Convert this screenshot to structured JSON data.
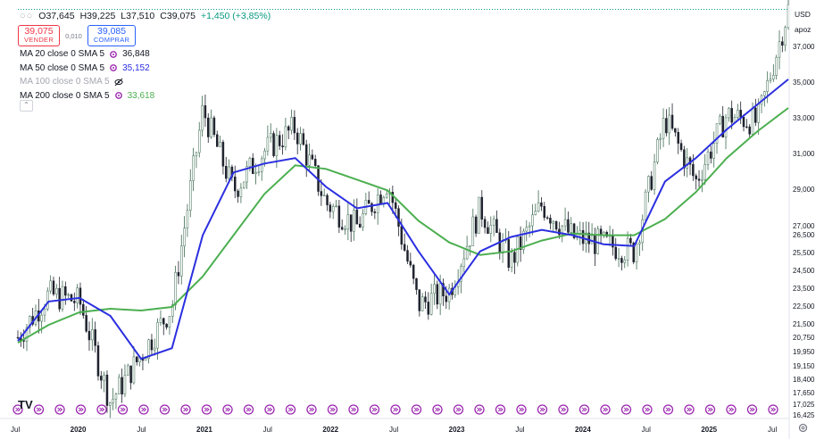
{
  "instrument": {
    "ohlc": {
      "open": "O37,645",
      "high": "H39,225",
      "low": "L37,510",
      "close": "C39,075",
      "change": "+1,450 (+3,85%)"
    },
    "sell": {
      "price": "39,075",
      "label": "VENDER"
    },
    "buy": {
      "price": "39,085",
      "label": "COMPRAR"
    },
    "spread": "0,010",
    "currency": "USD",
    "scale_mode": "apoz"
  },
  "indicators": [
    {
      "label": "MA 20 close 0 SMA 5",
      "value": "36,848",
      "visible": true,
      "color": "#131722"
    },
    {
      "label": "MA 50 close 0 SMA 5",
      "value": "35,152",
      "visible": true,
      "color": "#2b2fe0"
    },
    {
      "label": "MA 100 close 0 SMA 5",
      "value": "",
      "visible": false,
      "color": "#a3a6af"
    },
    {
      "label": "MA 200 close 0 SMA 5",
      "value": "33,618",
      "visible": true,
      "color": "#4caf50"
    }
  ],
  "price_axis": {
    "ticks": [
      "37,000",
      "35,000",
      "33,000",
      "31,000",
      "29,000",
      "27,000",
      "26,500",
      "25,500",
      "24,500",
      "23,500",
      "22,500",
      "21,500",
      "20,750",
      "19,950",
      "19,150",
      "18,400",
      "17,650",
      "17,025",
      "16,425"
    ]
  },
  "time_axis": {
    "labels": [
      {
        "text": "Jul",
        "year": false
      },
      {
        "text": "2020",
        "year": true
      },
      {
        "text": "Jul",
        "year": false
      },
      {
        "text": "2021",
        "year": true
      },
      {
        "text": "Jul",
        "year": false
      },
      {
        "text": "2022",
        "year": true
      },
      {
        "text": "Jul",
        "year": false
      },
      {
        "text": "2023",
        "year": true
      },
      {
        "text": "Jul",
        "year": false
      },
      {
        "text": "2024",
        "year": true
      },
      {
        "text": "Jul",
        "year": false
      },
      {
        "text": "2025",
        "year": true
      },
      {
        "text": "Jul",
        "year": false
      }
    ]
  },
  "logo": "TV",
  "colors": {
    "up": "#089981",
    "down": "#f23645",
    "ma50": "#2b2fe0",
    "ma200": "#4caf50",
    "event": "#9c27b0"
  },
  "chart_data": {
    "type": "line",
    "title": "",
    "x": [
      "2019-07",
      "2019-10",
      "2020-01",
      "2020-03",
      "2020-05",
      "2020-07",
      "2020-10",
      "2021-01",
      "2021-04",
      "2021-07",
      "2021-10",
      "2022-01",
      "2022-04",
      "2022-07",
      "2022-10",
      "2023-01",
      "2023-04",
      "2023-07",
      "2023-10",
      "2024-01",
      "2024-04",
      "2024-07",
      "2024-10",
      "2025-01",
      "2025-04",
      "2025-07"
    ],
    "series": [
      {
        "name": "Price",
        "values": [
          20.8,
          23.2,
          22.8,
          17.2,
          19.8,
          22.5,
          33.5,
          29.0,
          31.2,
          32.5,
          28.3,
          27.0,
          29.5,
          22.6,
          23.4,
          28.0,
          25.0,
          28.2,
          26.4,
          26.0,
          25.6,
          33.0,
          29.5,
          33.2,
          32.8,
          39.1
        ]
      },
      {
        "name": "MA 50 close 0 SMA 5",
        "values": [
          20.6,
          22.8,
          23.0,
          22.0,
          19.6,
          20.2,
          26.5,
          30.0,
          30.5,
          30.8,
          29.2,
          28.0,
          28.3,
          25.6,
          23.2,
          25.6,
          26.4,
          26.8,
          26.5,
          26.0,
          25.9,
          29.5,
          30.8,
          32.4,
          33.8,
          35.2
        ]
      },
      {
        "name": "MA 200 close 0 SMA 5",
        "values": [
          20.5,
          21.5,
          22.2,
          22.4,
          22.3,
          22.5,
          24.2,
          26.5,
          28.8,
          30.4,
          30.2,
          29.6,
          29.0,
          27.3,
          26.1,
          25.4,
          25.6,
          26.2,
          26.6,
          26.5,
          26.5,
          27.4,
          28.9,
          30.8,
          32.3,
          33.6
        ]
      }
    ],
    "ylim": [
      16.425,
      39.225
    ]
  }
}
